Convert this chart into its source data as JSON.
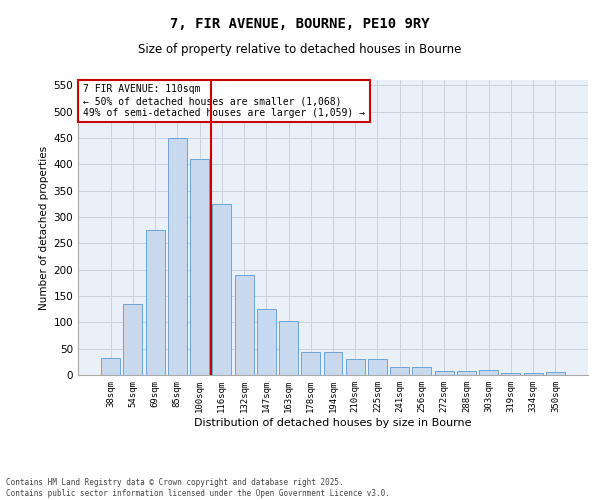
{
  "title1": "7, FIR AVENUE, BOURNE, PE10 9RY",
  "title2": "Size of property relative to detached houses in Bourne",
  "xlabel": "Distribution of detached houses by size in Bourne",
  "ylabel": "Number of detached properties",
  "categories": [
    "38sqm",
    "54sqm",
    "69sqm",
    "85sqm",
    "100sqm",
    "116sqm",
    "132sqm",
    "147sqm",
    "163sqm",
    "178sqm",
    "194sqm",
    "210sqm",
    "225sqm",
    "241sqm",
    "256sqm",
    "272sqm",
    "288sqm",
    "303sqm",
    "319sqm",
    "334sqm",
    "350sqm"
  ],
  "values": [
    33,
    135,
    275,
    450,
    410,
    325,
    190,
    125,
    102,
    44,
    44,
    30,
    30,
    15,
    15,
    7,
    7,
    10,
    4,
    3,
    6
  ],
  "bar_color": "#c9d9ed",
  "bar_edge_color": "#5b9bd5",
  "grid_color": "#c8d0de",
  "vline_x": 4.5,
  "vline_color": "#cc0000",
  "annotation_text": "7 FIR AVENUE: 110sqm\n← 50% of detached houses are smaller (1,068)\n49% of semi-detached houses are larger (1,059) →",
  "annotation_box_color": "#ffffff",
  "annotation_box_edge": "#cc0000",
  "footer": "Contains HM Land Registry data © Crown copyright and database right 2025.\nContains public sector information licensed under the Open Government Licence v3.0.",
  "ylim": [
    0,
    560
  ],
  "yticks": [
    0,
    50,
    100,
    150,
    200,
    250,
    300,
    350,
    400,
    450,
    500,
    550
  ],
  "bg_color": "#eaf0f8",
  "fig_bg_color": "#ffffff"
}
